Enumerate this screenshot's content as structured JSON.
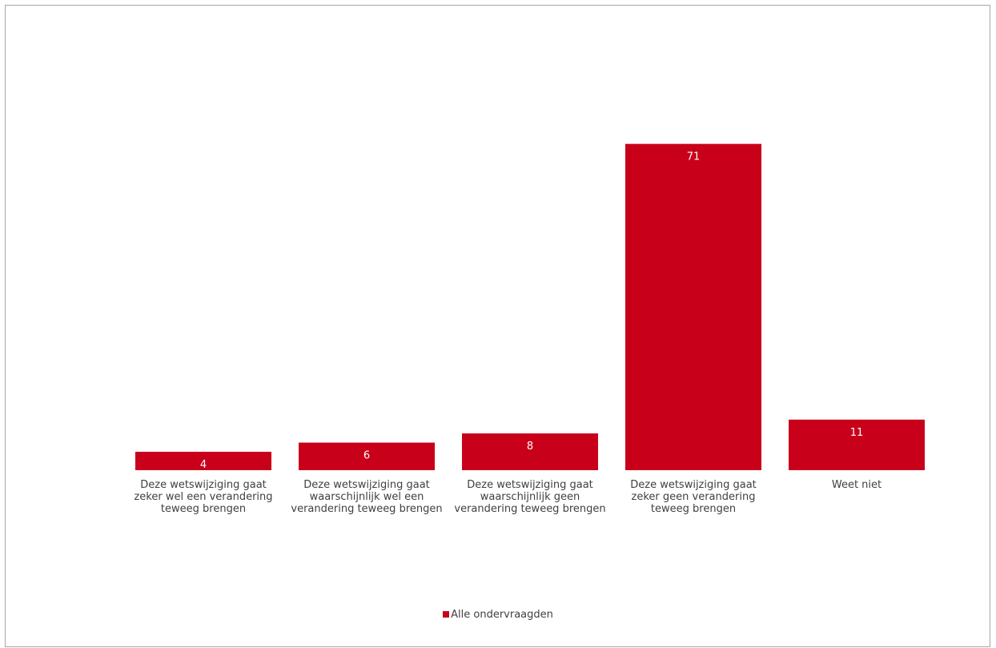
{
  "chart_data": {
    "type": "bar",
    "categories": [
      "Deze wetswijziging gaat zeker wel een verandering teweeg brengen",
      "Deze wetswijziging gaat waarschijnlijk wel een verandering teweeg brengen",
      "Deze wetswijziging gaat waarschijnlijk geen verandering teweeg brengen",
      "Deze wetswijziging gaat zeker geen verandering teweeg brengen",
      "Weet niet"
    ],
    "category_lines": [
      [
        "Deze wetswijziging gaat",
        "zeker wel een verandering",
        "teweeg brengen"
      ],
      [
        "Deze wetswijziging gaat",
        "waarschijnlijk wel een",
        "verandering teweeg brengen"
      ],
      [
        "Deze wetswijziging gaat",
        "waarschijnlijk geen",
        "verandering teweeg brengen"
      ],
      [
        "Deze wetswijziging gaat",
        "zeker geen verandering",
        "teweeg brengen"
      ],
      [
        "Weet niet"
      ]
    ],
    "series": [
      {
        "name": "Alle ondervraagden",
        "values": [
          4,
          6,
          8,
          71,
          11
        ],
        "color": "#c8001a"
      }
    ],
    "data_labels": [
      "4",
      "6",
      "8",
      "71",
      "11"
    ],
    "ylim": [
      0,
      80
    ],
    "grid": false,
    "legend_position": "bottom"
  }
}
